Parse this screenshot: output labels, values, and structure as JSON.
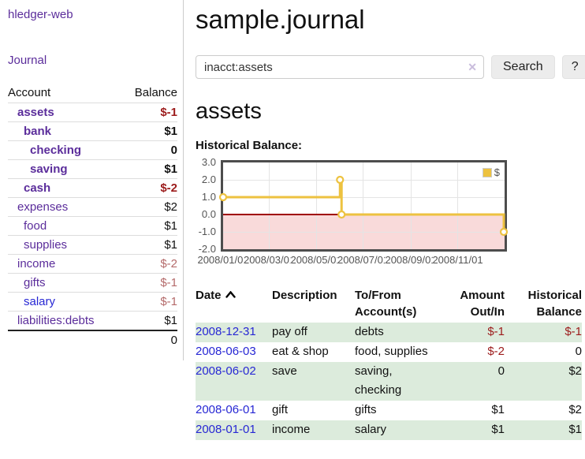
{
  "colors": {
    "accent_purple": "#5b2d9b",
    "link_blue": "#2727d4",
    "negative_strong": "#9c1b1b",
    "negative_muted": "#b46a6a",
    "row_green": "#dcebdc",
    "series_gold": "#edc240",
    "region_pink": "#f9dada",
    "zero_line": "#a00000"
  },
  "sidebar": {
    "app_title": "hledger-web",
    "nav": {
      "journal": "Journal"
    },
    "accounts": {
      "headers": {
        "account": "Account",
        "balance": "Balance"
      },
      "rows": [
        {
          "account": "assets",
          "balance": "$-1",
          "level": 1,
          "bold": true,
          "balance_style": "neg"
        },
        {
          "account": "bank",
          "balance": "$1",
          "level": 2,
          "bold": true,
          "balance_style": "pos"
        },
        {
          "account": "checking",
          "balance": "0",
          "level": 3,
          "bold": true,
          "balance_style": "pos"
        },
        {
          "account": "saving",
          "balance": "$1",
          "level": 3,
          "bold": true,
          "balance_style": "pos"
        },
        {
          "account": "cash",
          "balance": "$-2",
          "level": 2,
          "bold": true,
          "balance_style": "neg"
        },
        {
          "account": "expenses",
          "balance": "$2",
          "level": 1,
          "bold": false,
          "balance_style": "pos"
        },
        {
          "account": "food",
          "balance": "$1",
          "level": 2,
          "bold": false,
          "balance_style": "pos"
        },
        {
          "account": "supplies",
          "balance": "$1",
          "level": 2,
          "bold": false,
          "balance_style": "pos"
        },
        {
          "account": "income",
          "balance": "$-2",
          "level": 1,
          "bold": false,
          "balance_style": "neg-muted"
        },
        {
          "account": "gifts",
          "balance": "$-1",
          "level": 2,
          "bold": false,
          "balance_style": "neg-muted"
        },
        {
          "account": "salary",
          "balance": "$-1",
          "level": 2,
          "bold": false,
          "balance_style": "neg-muted",
          "link_style": "unvisited-blue"
        },
        {
          "account": "liabilities:debts",
          "balance": "$1",
          "level": 1,
          "bold": false,
          "balance_style": "pos"
        }
      ],
      "total": "0"
    }
  },
  "main": {
    "title": "sample.journal",
    "search": {
      "value": "inacct:assets",
      "clear_icon": "✕",
      "search_button": "Search",
      "help_button": "?"
    },
    "account_heading": "assets",
    "section_label": "Historical Balance:"
  },
  "chart_data": {
    "type": "line",
    "step": true,
    "title": "Historical Balance",
    "series": [
      {
        "name": "$",
        "color": "#edc240",
        "points": [
          [
            "2008-01-01",
            1
          ],
          [
            "2008-06-01",
            2
          ],
          [
            "2008-06-03",
            0
          ],
          [
            "2008-12-31",
            -1
          ]
        ]
      }
    ],
    "ylim": [
      -2,
      3
    ],
    "y_ticks": [
      "3.0",
      "2.0",
      "1.0",
      "0.0",
      "-1.0",
      "-2.0"
    ],
    "x_ticks": [
      "2008/01/01",
      "2008/03/01",
      "2008/05/01",
      "2008/07/01",
      "2008/09/01",
      "2008/11/01"
    ],
    "x_grid": [
      "2008/03/01",
      "2008/05/01",
      "2008/07/01",
      "2008/09/01",
      "2008/11/01"
    ],
    "x_range": [
      "2008-01-01",
      "2009-01-01"
    ],
    "shade_below": 0,
    "grid": true,
    "legend_position": "top-right",
    "legend": {
      "label": "$"
    }
  },
  "register": {
    "headers": {
      "date": "Date",
      "description": "Description",
      "accounts": "To/From Account(s)",
      "amount": "Amount Out/In",
      "balance": "Historical Balance"
    },
    "sort": {
      "column": "date",
      "direction": "ascending"
    },
    "rows": [
      {
        "date": "2008-12-31",
        "description": "pay off",
        "accounts": "debts",
        "amount": "$-1",
        "balance": "$-1",
        "amount_style": "neg",
        "balance_style": "neg"
      },
      {
        "date": "2008-06-03",
        "description": "eat & shop",
        "accounts": "food, supplies",
        "amount": "$-2",
        "balance": "0",
        "amount_style": "neg",
        "balance_style": "pos"
      },
      {
        "date": "2008-06-02",
        "description": "save",
        "accounts": "saving, checking",
        "amount": "0",
        "balance": "$2",
        "amount_style": "pos",
        "balance_style": "pos"
      },
      {
        "date": "2008-06-01",
        "description": "gift",
        "accounts": "gifts",
        "amount": "$1",
        "balance": "$2",
        "amount_style": "pos",
        "balance_style": "pos"
      },
      {
        "date": "2008-01-01",
        "description": "income",
        "accounts": "salary",
        "amount": "$1",
        "balance": "$1",
        "amount_style": "pos",
        "balance_style": "pos"
      }
    ]
  }
}
